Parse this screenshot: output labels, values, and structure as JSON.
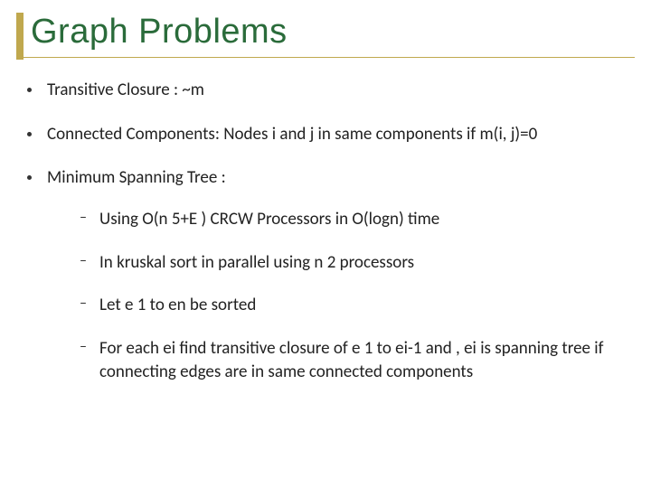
{
  "title": "Graph Problems",
  "accent_color": "#c0a84e",
  "title_color": "#2a6b3a",
  "text_color": "#222222",
  "background_color": "#ffffff",
  "title_fontsize": 38,
  "body_fontsize": 19,
  "bullets": [
    {
      "text": "Transitive Closure : ~m"
    },
    {
      "text": "Connected Components: Nodes i and j in same components if m(i, j)=0"
    },
    {
      "text": "Minimum Spanning Tree :",
      "children": [
        {
          "text": "Using O(n 5+E ) CRCW Processors in O(logn) time"
        },
        {
          "text": "In kruskal sort in parallel using n 2 processors"
        },
        {
          "text": "Let e 1 to en be sorted"
        },
        {
          "text": "For each ei find transitive closure of e 1 to ei-1 and , ei is spanning tree if connecting edges are in same connected components"
        }
      ]
    }
  ]
}
